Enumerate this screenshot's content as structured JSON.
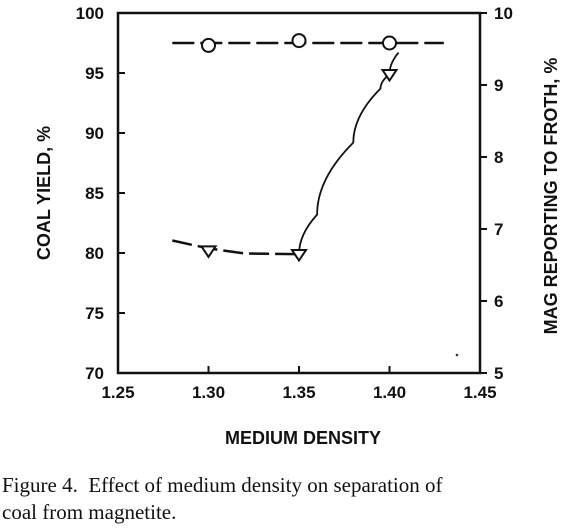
{
  "chart_data": {
    "type": "line",
    "xlabel": "MEDIUM DENSITY",
    "ylabel_left": "COAL YIELD, %",
    "ylabel_right": "MAG REPORTING TO FROTH, %",
    "xlim": [
      1.25,
      1.45
    ],
    "ylim_left": [
      70,
      100
    ],
    "ylim_right": [
      5,
      10
    ],
    "x_ticks": [
      "1.25",
      "1.30",
      "1.35",
      "1.40",
      "1.45"
    ],
    "y_left_ticks": [
      "70",
      "75",
      "80",
      "85",
      "90",
      "95",
      "100"
    ],
    "y_right_ticks": [
      "5",
      "6",
      "7",
      "8",
      "9",
      "10"
    ],
    "grid": false,
    "series": [
      {
        "axis": "left",
        "marker": "circle",
        "line_style": "dashed",
        "x": [
          1.3,
          1.35,
          1.4
        ],
        "y": [
          97.3,
          97.7,
          97.5
        ],
        "line_x": [
          1.28,
          1.43
        ],
        "line_y": [
          97.5,
          97.5
        ]
      },
      {
        "axis": "right",
        "marker": "triangle-down",
        "line_style": "dashed-solid",
        "x": [
          1.3,
          1.35,
          1.4
        ],
        "y": [
          6.7,
          6.65,
          9.15
        ],
        "curve_x": [
          1.28,
          1.3,
          1.32,
          1.35,
          1.36,
          1.38,
          1.395,
          1.4,
          1.405
        ],
        "curve_y": [
          6.84,
          6.73,
          6.66,
          6.65,
          7.2,
          8.2,
          8.95,
          9.15,
          9.45
        ]
      }
    ]
  },
  "caption": "Figure 4.  Effect of medium density on separation of\ncoal from magnetite."
}
